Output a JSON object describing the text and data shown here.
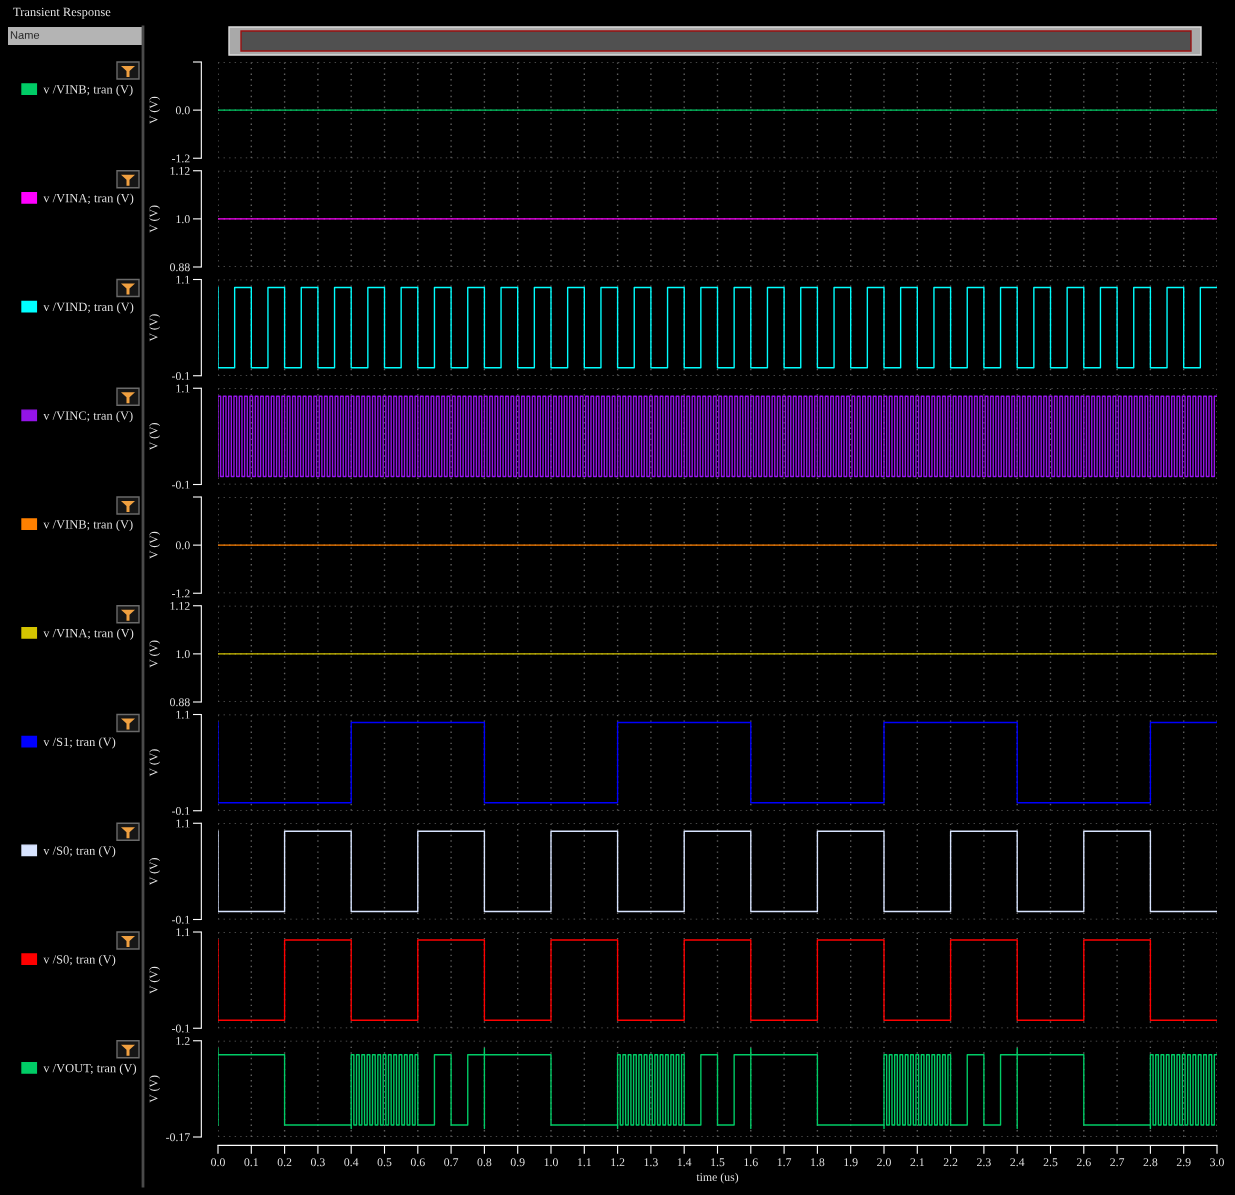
{
  "chart_data": [
    {
      "type": "step",
      "title": "Transient Response",
      "annotations": [
        "Name"
      ],
      "series": [
        {
          "name": "v /VINB; tran (V)",
          "color": "#00cc66",
          "x": [
            0,
            3
          ],
          "values": [
            0,
            0
          ]
        }
      ],
      "ylabel": "V (V)",
      "xlim": [
        0,
        3
      ],
      "xticks": [
        0,
        0.1,
        0.2,
        0.3,
        0.4,
        0.5,
        0.6,
        0.7,
        0.8,
        0.9,
        1,
        1.1,
        1.2,
        1.3,
        1.4,
        1.5,
        1.6,
        1.7,
        1.8,
        1.9,
        2,
        2.1,
        2.2,
        2.3,
        2.4,
        2.5,
        2.6,
        2.7,
        2.8,
        2.9,
        3
      ],
      "ylim": [
        -1.2,
        1.2
      ],
      "yticks": [
        {
          "value": 1.2,
          "label": null
        },
        {
          "value": 0,
          "label": "0.0"
        },
        -1.2
      ],
      "grid": true,
      "legend": "left",
      "tick_labels": "y"
    },
    {
      "type": "step",
      "series": [
        {
          "name": "v /VINA; tran (V)",
          "color": "#ff00ff",
          "x": [
            0,
            3
          ],
          "values": [
            1,
            1
          ]
        }
      ],
      "ylabel": "V (V)",
      "xlim": [
        0,
        3
      ],
      "xticks": [
        0,
        0.1,
        0.2,
        0.3,
        0.4,
        0.5,
        0.6,
        0.7,
        0.8,
        0.9,
        1,
        1.1,
        1.2,
        1.3,
        1.4,
        1.5,
        1.6,
        1.7,
        1.8,
        1.9,
        2,
        2.1,
        2.2,
        2.3,
        2.4,
        2.5,
        2.6,
        2.7,
        2.8,
        2.9,
        3
      ],
      "ylim": [
        0.88,
        1.12
      ],
      "yticks": [
        1.12,
        {
          "value": 1,
          "label": "1.0"
        },
        0.88
      ],
      "grid": true,
      "legend": "left",
      "tick_labels": "y"
    },
    {
      "type": "step",
      "series": [
        {
          "name": "v /VIND; tran (V)",
          "color": "#00ffff",
          "x": [
            0,
            0,
            0.05,
            0.1,
            0.15,
            0.2,
            0.25,
            0.3,
            0.35,
            0.4,
            0.45,
            0.5,
            0.55,
            0.6,
            0.65,
            0.7,
            0.75,
            0.8,
            0.85,
            0.9,
            0.95,
            1,
            1.05,
            1.1,
            1.15,
            1.2,
            1.25,
            1.3,
            1.35,
            1.4,
            1.45,
            1.5,
            1.55,
            1.6,
            1.65,
            1.7,
            1.75,
            1.8,
            1.85,
            1.9,
            1.95,
            2,
            2.05,
            2.1,
            2.15,
            2.2,
            2.25,
            2.3,
            2.35,
            2.4,
            2.45,
            2.5,
            2.55,
            2.6,
            2.65,
            2.7,
            2.75,
            2.8,
            2.85,
            2.9,
            2.95,
            3
          ],
          "values": [
            1,
            0,
            1,
            0,
            1,
            0,
            1,
            0,
            1,
            0,
            1,
            0,
            1,
            0,
            1,
            0,
            1,
            0,
            1,
            0,
            1,
            0,
            1,
            0,
            1,
            0,
            1,
            0,
            1,
            0,
            1,
            0,
            1,
            0,
            1,
            0,
            1,
            0,
            1,
            0,
            1,
            0,
            1,
            0,
            1,
            0,
            1,
            0,
            1,
            0,
            1,
            0,
            1,
            0,
            1,
            0,
            1,
            0,
            1,
            0,
            1,
            1
          ]
        }
      ],
      "ylabel": "V (V)",
      "xlim": [
        0,
        3
      ],
      "xticks": [
        0,
        0.1,
        0.2,
        0.3,
        0.4,
        0.5,
        0.6,
        0.7,
        0.8,
        0.9,
        1,
        1.1,
        1.2,
        1.3,
        1.4,
        1.5,
        1.6,
        1.7,
        1.8,
        1.9,
        2,
        2.1,
        2.2,
        2.3,
        2.4,
        2.5,
        2.6,
        2.7,
        2.8,
        2.9,
        3
      ],
      "ylim": [
        -0.1,
        1.1
      ],
      "yticks": [
        1.1,
        -0.1
      ],
      "grid": true,
      "legend": "left",
      "tick_labels": "y"
    },
    {
      "type": "step",
      "series": [
        {
          "name": "v /VINC; tran (V)",
          "color": "#9414e8",
          "x": [
            0,
            0,
            0.008,
            0.016,
            0.024,
            0.032,
            0.04,
            0.048,
            0.056,
            0.064,
            0.072,
            0.08,
            0.088,
            0.096,
            0.104,
            0.112,
            0.12,
            0.128,
            0.136,
            0.144,
            0.152,
            0.16,
            0.168,
            0.176,
            0.184,
            0.192,
            0.2,
            0.208,
            0.216,
            0.224,
            0.232,
            0.24,
            0.248,
            0.256,
            0.264,
            0.272,
            0.28,
            0.288,
            0.296,
            0.304,
            0.312,
            0.32,
            0.328,
            0.336,
            0.344,
            0.352,
            0.36,
            0.368,
            0.376,
            0.384,
            0.392,
            0.4,
            0.408,
            0.416,
            0.424,
            0.432,
            0.44,
            0.448,
            0.456,
            0.464,
            0.472,
            0.48,
            0.488,
            0.496,
            0.504,
            0.512,
            0.52,
            0.528,
            0.536,
            0.544,
            0.552,
            0.56,
            0.568,
            0.576,
            0.584,
            0.592,
            0.6,
            0.608,
            0.616,
            0.624,
            0.632,
            0.64,
            0.648,
            0.656,
            0.664,
            0.672,
            0.68,
            0.688,
            0.696,
            0.704,
            0.712,
            0.72,
            0.728,
            0.736,
            0.744,
            0.752,
            0.76,
            0.768,
            0.776,
            0.784,
            0.792,
            0.8,
            0.808,
            0.816,
            0.824,
            0.832,
            0.84,
            0.848,
            0.856,
            0.864,
            0.872,
            0.88,
            0.888,
            0.896,
            0.904,
            0.912,
            0.92,
            0.928,
            0.936,
            0.944,
            0.952,
            0.96,
            0.968,
            0.976,
            0.984,
            0.992,
            1,
            1.008,
            1.016,
            1.024,
            1.032,
            1.04,
            1.048,
            1.056,
            1.064,
            1.072,
            1.08,
            1.088,
            1.096,
            1.104,
            1.112,
            1.12,
            1.128,
            1.136,
            1.144,
            1.152,
            1.16,
            1.168,
            1.176,
            1.184,
            1.192,
            1.2,
            1.208,
            1.216,
            1.224,
            1.232,
            1.24,
            1.248,
            1.256,
            1.264,
            1.272,
            1.28,
            1.288,
            1.296,
            1.304,
            1.312,
            1.32,
            1.328,
            1.336,
            1.344,
            1.352,
            1.36,
            1.368,
            1.376,
            1.384,
            1.392,
            1.4,
            1.408,
            1.416,
            1.424,
            1.432,
            1.44,
            1.448,
            1.456,
            1.464,
            1.472,
            1.48,
            1.488,
            1.496,
            1.504,
            1.512,
            1.52,
            1.528,
            1.536,
            1.544,
            1.552,
            1.56,
            1.568,
            1.576,
            1.584,
            1.592,
            1.6,
            1.608,
            1.616,
            1.624,
            1.632,
            1.64,
            1.648,
            1.656,
            1.664,
            1.672,
            1.68,
            1.688,
            1.696,
            1.704,
            1.712,
            1.72,
            1.728,
            1.736,
            1.744,
            1.752,
            1.76,
            1.768,
            1.776,
            1.784,
            1.792,
            1.8,
            1.808,
            1.816,
            1.824,
            1.832,
            1.84,
            1.848,
            1.856,
            1.864,
            1.872,
            1.88,
            1.888,
            1.896,
            1.904,
            1.912,
            1.92,
            1.928,
            1.936,
            1.944,
            1.952,
            1.96,
            1.968,
            1.976,
            1.984,
            1.992,
            2,
            2.008,
            2.016,
            2.024,
            2.032,
            2.04,
            2.048,
            2.056,
            2.064,
            2.072,
            2.08,
            2.088,
            2.096,
            2.104,
            2.112,
            2.12,
            2.128,
            2.136,
            2.144,
            2.152,
            2.16,
            2.168,
            2.176,
            2.184,
            2.192,
            2.2,
            2.208,
            2.216,
            2.224,
            2.232,
            2.24,
            2.248,
            2.256,
            2.264,
            2.272,
            2.28,
            2.288,
            2.296,
            2.304,
            2.312,
            2.32,
            2.328,
            2.336,
            2.344,
            2.352,
            2.36,
            2.368,
            2.376,
            2.384,
            2.392,
            2.4,
            2.408,
            2.416,
            2.424,
            2.432,
            2.44,
            2.448,
            2.456,
            2.464,
            2.472,
            2.48,
            2.488,
            2.496,
            2.504,
            2.512,
            2.52,
            2.528,
            2.536,
            2.544,
            2.552,
            2.56,
            2.568,
            2.576,
            2.584,
            2.592,
            2.6,
            2.608,
            2.616,
            2.624,
            2.632,
            2.64,
            2.648,
            2.656,
            2.664,
            2.672,
            2.68,
            2.688,
            2.696,
            2.704,
            2.712,
            2.72,
            2.728,
            2.736,
            2.744,
            2.752,
            2.76,
            2.768,
            2.776,
            2.784,
            2.792,
            2.8,
            2.808,
            2.816,
            2.824,
            2.832,
            2.84,
            2.848,
            2.856,
            2.864,
            2.872,
            2.88,
            2.888,
            2.896,
            2.904,
            2.912,
            2.92,
            2.928,
            2.936,
            2.944,
            2.952,
            2.96,
            2.968,
            2.976,
            2.984,
            2.992,
            3
          ],
          "values": [
            0,
            1,
            0,
            1,
            0,
            1,
            0,
            1,
            0,
            1,
            0,
            1,
            0,
            1,
            0,
            1,
            0,
            1,
            0,
            1,
            0,
            1,
            0,
            1,
            0,
            1,
            0,
            1,
            0,
            1,
            0,
            1,
            0,
            1,
            0,
            1,
            0,
            1,
            0,
            1,
            0,
            1,
            0,
            1,
            0,
            1,
            0,
            1,
            0,
            1,
            0,
            1,
            0,
            1,
            0,
            1,
            0,
            1,
            0,
            1,
            0,
            1,
            0,
            1,
            0,
            1,
            0,
            1,
            0,
            1,
            0,
            1,
            0,
            1,
            0,
            1,
            0,
            1,
            0,
            1,
            0,
            1,
            0,
            1,
            0,
            1,
            0,
            1,
            0,
            1,
            0,
            1,
            0,
            1,
            0,
            1,
            0,
            1,
            0,
            1,
            0,
            1,
            0,
            1,
            0,
            1,
            0,
            1,
            0,
            1,
            0,
            1,
            0,
            1,
            0,
            1,
            0,
            1,
            0,
            1,
            0,
            1,
            0,
            1,
            0,
            1,
            0,
            1,
            0,
            1,
            0,
            1,
            0,
            1,
            0,
            1,
            0,
            1,
            0,
            1,
            0,
            1,
            0,
            1,
            0,
            1,
            0,
            1,
            0,
            1,
            0,
            1,
            0,
            1,
            0,
            1,
            0,
            1,
            0,
            1,
            0,
            1,
            0,
            1,
            0,
            1,
            0,
            1,
            0,
            1,
            0,
            1,
            0,
            1,
            0,
            1,
            0,
            1,
            0,
            1,
            0,
            1,
            0,
            1,
            0,
            1,
            0,
            1,
            0,
            1,
            0,
            1,
            0,
            1,
            0,
            1,
            0,
            1,
            0,
            1,
            0,
            1,
            0,
            1,
            0,
            1,
            0,
            1,
            0,
            1,
            0,
            1,
            0,
            1,
            0,
            1,
            0,
            1,
            0,
            1,
            0,
            1,
            0,
            1,
            0,
            1,
            0,
            1,
            0,
            1,
            0,
            1,
            0,
            1,
            0,
            1,
            0,
            1,
            0,
            1,
            0,
            1,
            0,
            1,
            0,
            1,
            0,
            1,
            0,
            1,
            0,
            1,
            0,
            1,
            0,
            1,
            0,
            1,
            0,
            1,
            0,
            1,
            0,
            1,
            0,
            1,
            0,
            1,
            0,
            1,
            0,
            1,
            0,
            1,
            0,
            1,
            0,
            1,
            0,
            1,
            0,
            1,
            0,
            1,
            0,
            1,
            0,
            1,
            0,
            1,
            0,
            1,
            0,
            1,
            0,
            1,
            0,
            1,
            0,
            1,
            0,
            1,
            0,
            1,
            0,
            1,
            0,
            1,
            0,
            1,
            0,
            1,
            0,
            1,
            0,
            1,
            0,
            1,
            0,
            1,
            0,
            1,
            0,
            1,
            0,
            1,
            0,
            1,
            0,
            1,
            0,
            1,
            0,
            1,
            0,
            1,
            0,
            1,
            0,
            1,
            0,
            1,
            0,
            1,
            0,
            1,
            0,
            1,
            0,
            1,
            0,
            1,
            0,
            1,
            0,
            1,
            0,
            1,
            0,
            1,
            0,
            1,
            0,
            1,
            0,
            1,
            0,
            1,
            0,
            1,
            0,
            1,
            0,
            1,
            0,
            1,
            1
          ]
        }
      ],
      "ylabel": "V (V)",
      "xlim": [
        0,
        3
      ],
      "xticks": [
        0,
        0.1,
        0.2,
        0.3,
        0.4,
        0.5,
        0.6,
        0.7,
        0.8,
        0.9,
        1,
        1.1,
        1.2,
        1.3,
        1.4,
        1.5,
        1.6,
        1.7,
        1.8,
        1.9,
        2,
        2.1,
        2.2,
        2.3,
        2.4,
        2.5,
        2.6,
        2.7,
        2.8,
        2.9,
        3
      ],
      "ylim": [
        -0.1,
        1.1
      ],
      "yticks": [
        1.1,
        -0.1
      ],
      "grid": true,
      "legend": "left",
      "tick_labels": "y"
    },
    {
      "type": "step",
      "series": [
        {
          "name": "v /VINB; tran (V)",
          "color": "#ff8000",
          "x": [
            0,
            3
          ],
          "values": [
            0,
            0
          ]
        }
      ],
      "ylabel": "V (V)",
      "xlim": [
        0,
        3
      ],
      "xticks": [
        0,
        0.1,
        0.2,
        0.3,
        0.4,
        0.5,
        0.6,
        0.7,
        0.8,
        0.9,
        1,
        1.1,
        1.2,
        1.3,
        1.4,
        1.5,
        1.6,
        1.7,
        1.8,
        1.9,
        2,
        2.1,
        2.2,
        2.3,
        2.4,
        2.5,
        2.6,
        2.7,
        2.8,
        2.9,
        3
      ],
      "ylim": [
        -1.2,
        1.2
      ],
      "yticks": [
        {
          "value": 1.2,
          "label": null
        },
        {
          "value": 0,
          "label": "0.0"
        },
        -1.2
      ],
      "grid": true,
      "legend": "left",
      "tick_labels": "y"
    },
    {
      "type": "step",
      "series": [
        {
          "name": "v /VINA; tran (V)",
          "color": "#d4c400",
          "x": [
            0,
            3
          ],
          "values": [
            1,
            1
          ]
        }
      ],
      "ylabel": "V (V)",
      "xlim": [
        0,
        3
      ],
      "xticks": [
        0,
        0.1,
        0.2,
        0.3,
        0.4,
        0.5,
        0.6,
        0.7,
        0.8,
        0.9,
        1,
        1.1,
        1.2,
        1.3,
        1.4,
        1.5,
        1.6,
        1.7,
        1.8,
        1.9,
        2,
        2.1,
        2.2,
        2.3,
        2.4,
        2.5,
        2.6,
        2.7,
        2.8,
        2.9,
        3
      ],
      "ylim": [
        0.88,
        1.12
      ],
      "yticks": [
        1.12,
        {
          "value": 1,
          "label": "1.0"
        },
        0.88
      ],
      "grid": true,
      "legend": "left",
      "tick_labels": "y"
    },
    {
      "type": "step",
      "series": [
        {
          "name": "v /S1; tran (V)",
          "color": "#0000ff",
          "x": [
            0,
            0,
            0.4,
            0.8,
            1.2,
            1.6,
            2,
            2.4,
            2.8,
            3
          ],
          "values": [
            1,
            0,
            1,
            0,
            1,
            0,
            1,
            0,
            1,
            1
          ]
        }
      ],
      "ylabel": "V (V)",
      "xlim": [
        0,
        3
      ],
      "xticks": [
        0,
        0.1,
        0.2,
        0.3,
        0.4,
        0.5,
        0.6,
        0.7,
        0.8,
        0.9,
        1,
        1.1,
        1.2,
        1.3,
        1.4,
        1.5,
        1.6,
        1.7,
        1.8,
        1.9,
        2,
        2.1,
        2.2,
        2.3,
        2.4,
        2.5,
        2.6,
        2.7,
        2.8,
        2.9,
        3
      ],
      "ylim": [
        -0.1,
        1.1
      ],
      "yticks": [
        1.1,
        -0.1
      ],
      "grid": true,
      "legend": "left",
      "tick_labels": "y"
    },
    {
      "type": "step",
      "series": [
        {
          "name": "v /S0; tran (V)",
          "color": "#d8e4ff",
          "x": [
            0,
            0,
            0.2,
            0.4,
            0.6,
            0.8,
            1,
            1.2,
            1.4,
            1.6,
            1.8,
            2,
            2.2,
            2.4,
            2.6,
            2.8,
            3
          ],
          "values": [
            1,
            0,
            1,
            0,
            1,
            0,
            1,
            0,
            1,
            0,
            1,
            0,
            1,
            0,
            1,
            0,
            0
          ]
        }
      ],
      "ylabel": "V (V)",
      "xlim": [
        0,
        3
      ],
      "xticks": [
        0,
        0.1,
        0.2,
        0.3,
        0.4,
        0.5,
        0.6,
        0.7,
        0.8,
        0.9,
        1,
        1.1,
        1.2,
        1.3,
        1.4,
        1.5,
        1.6,
        1.7,
        1.8,
        1.9,
        2,
        2.1,
        2.2,
        2.3,
        2.4,
        2.5,
        2.6,
        2.7,
        2.8,
        2.9,
        3
      ],
      "ylim": [
        -0.1,
        1.1
      ],
      "yticks": [
        1.1,
        -0.1
      ],
      "grid": true,
      "legend": "left",
      "tick_labels": "y"
    },
    {
      "type": "step",
      "series": [
        {
          "name": "v /S0; tran (V)",
          "color": "#ff0000",
          "x": [
            0,
            0,
            0.2,
            0.4,
            0.6,
            0.8,
            1,
            1.2,
            1.4,
            1.6,
            1.8,
            2,
            2.2,
            2.4,
            2.6,
            2.8,
            3
          ],
          "values": [
            1,
            0,
            1,
            0,
            1,
            0,
            1,
            0,
            1,
            0,
            1,
            0,
            1,
            0,
            1,
            0,
            0
          ]
        }
      ],
      "ylabel": "V (V)",
      "xlim": [
        0,
        3
      ],
      "xticks": [
        0,
        0.1,
        0.2,
        0.3,
        0.4,
        0.5,
        0.6,
        0.7,
        0.8,
        0.9,
        1,
        1.1,
        1.2,
        1.3,
        1.4,
        1.5,
        1.6,
        1.7,
        1.8,
        1.9,
        2,
        2.1,
        2.2,
        2.3,
        2.4,
        2.5,
        2.6,
        2.7,
        2.8,
        2.9,
        3
      ],
      "ylim": [
        -0.1,
        1.1
      ],
      "yticks": [
        1.1,
        -0.1
      ],
      "grid": true,
      "legend": "left",
      "tick_labels": "y"
    },
    {
      "type": "step",
      "series": [
        {
          "name": "v /VOUT; tran (V)",
          "color": "#00cc66",
          "x": [
            0,
            0,
            0,
            0,
            0.2,
            0.4,
            0.4,
            0.4,
            0.408,
            0.416,
            0.424,
            0.432,
            0.44,
            0.448,
            0.456,
            0.464,
            0.472,
            0.48,
            0.488,
            0.496,
            0.504,
            0.512,
            0.52,
            0.528,
            0.536,
            0.544,
            0.552,
            0.56,
            0.568,
            0.576,
            0.584,
            0.592,
            0.6,
            0.65,
            0.7,
            0.75,
            0.8,
            0.8,
            0.8,
            1,
            1.2,
            1.2,
            1.2,
            1.208,
            1.216,
            1.224,
            1.232,
            1.24,
            1.248,
            1.256,
            1.264,
            1.272,
            1.28,
            1.288,
            1.296,
            1.304,
            1.312,
            1.32,
            1.328,
            1.336,
            1.344,
            1.352,
            1.36,
            1.368,
            1.376,
            1.384,
            1.392,
            1.4,
            1.45,
            1.5,
            1.55,
            1.6,
            1.6,
            1.6,
            1.8,
            2,
            2,
            2,
            2.008,
            2.016,
            2.024,
            2.032,
            2.04,
            2.048,
            2.056,
            2.064,
            2.072,
            2.08,
            2.088,
            2.096,
            2.104,
            2.112,
            2.12,
            2.128,
            2.136,
            2.144,
            2.152,
            2.16,
            2.168,
            2.176,
            2.184,
            2.192,
            2.2,
            2.25,
            2.3,
            2.35,
            2.4,
            2.4,
            2.4,
            2.6,
            2.8,
            2.8,
            2.8,
            2.808,
            2.816,
            2.824,
            2.832,
            2.84,
            2.848,
            2.856,
            2.864,
            2.872,
            2.88,
            2.888,
            2.896,
            2.904,
            2.912,
            2.92,
            2.928,
            2.936,
            2.944,
            2.952,
            2.96,
            2.968,
            2.976,
            2.984,
            2.992,
            3
          ],
          "values": [
            0,
            1.09,
            0.9,
            1,
            0,
            0.15,
            -0.05,
            1,
            0,
            1,
            0,
            1,
            0,
            1,
            0,
            1,
            0,
            1,
            0,
            1,
            0,
            1,
            0,
            1,
            0,
            1,
            0,
            1,
            0,
            1,
            0,
            1,
            0,
            1,
            0,
            1,
            -0.05,
            1.09,
            1,
            0,
            0.15,
            -0.05,
            1,
            0,
            1,
            0,
            1,
            0,
            1,
            0,
            1,
            0,
            1,
            0,
            1,
            0,
            1,
            0,
            1,
            0,
            1,
            0,
            1,
            0,
            1,
            0,
            1,
            0,
            1,
            0,
            1,
            -0.05,
            1.09,
            1,
            0,
            0.15,
            -0.05,
            1,
            0,
            1,
            0,
            1,
            0,
            1,
            0,
            1,
            0,
            1,
            0,
            1,
            0,
            1,
            0,
            1,
            0,
            1,
            0,
            1,
            0,
            1,
            0,
            1,
            0,
            1,
            0,
            1,
            -0.05,
            1.09,
            1,
            0,
            0.15,
            -0.05,
            1,
            0,
            1,
            0,
            1,
            0,
            1,
            0,
            1,
            0,
            1,
            0,
            1,
            0,
            1,
            0,
            1,
            0,
            1,
            0,
            1,
            0,
            1,
            0,
            1,
            1
          ]
        }
      ],
      "ylabel": "V (V)",
      "xlabel": "time (us)",
      "xlim": [
        0,
        3
      ],
      "xticks": [
        {
          "value": 0,
          "label": "0.0"
        },
        0.1,
        0.2,
        0.3,
        0.4,
        0.5,
        0.6,
        0.7,
        0.8,
        0.9,
        {
          "value": 1,
          "label": "1.0"
        },
        1.1,
        1.2,
        1.3,
        1.4,
        1.5,
        1.6,
        1.7,
        1.8,
        1.9,
        {
          "value": 2,
          "label": "2.0"
        },
        2.1,
        2.2,
        2.3,
        2.4,
        2.5,
        2.6,
        2.7,
        2.8,
        2.9,
        {
          "value": 3,
          "label": "3.0"
        }
      ],
      "ylim": [
        -0.17,
        1.2
      ],
      "yticks": [
        1.2,
        -0.17
      ],
      "grid": true,
      "legend": "left"
    }
  ]
}
